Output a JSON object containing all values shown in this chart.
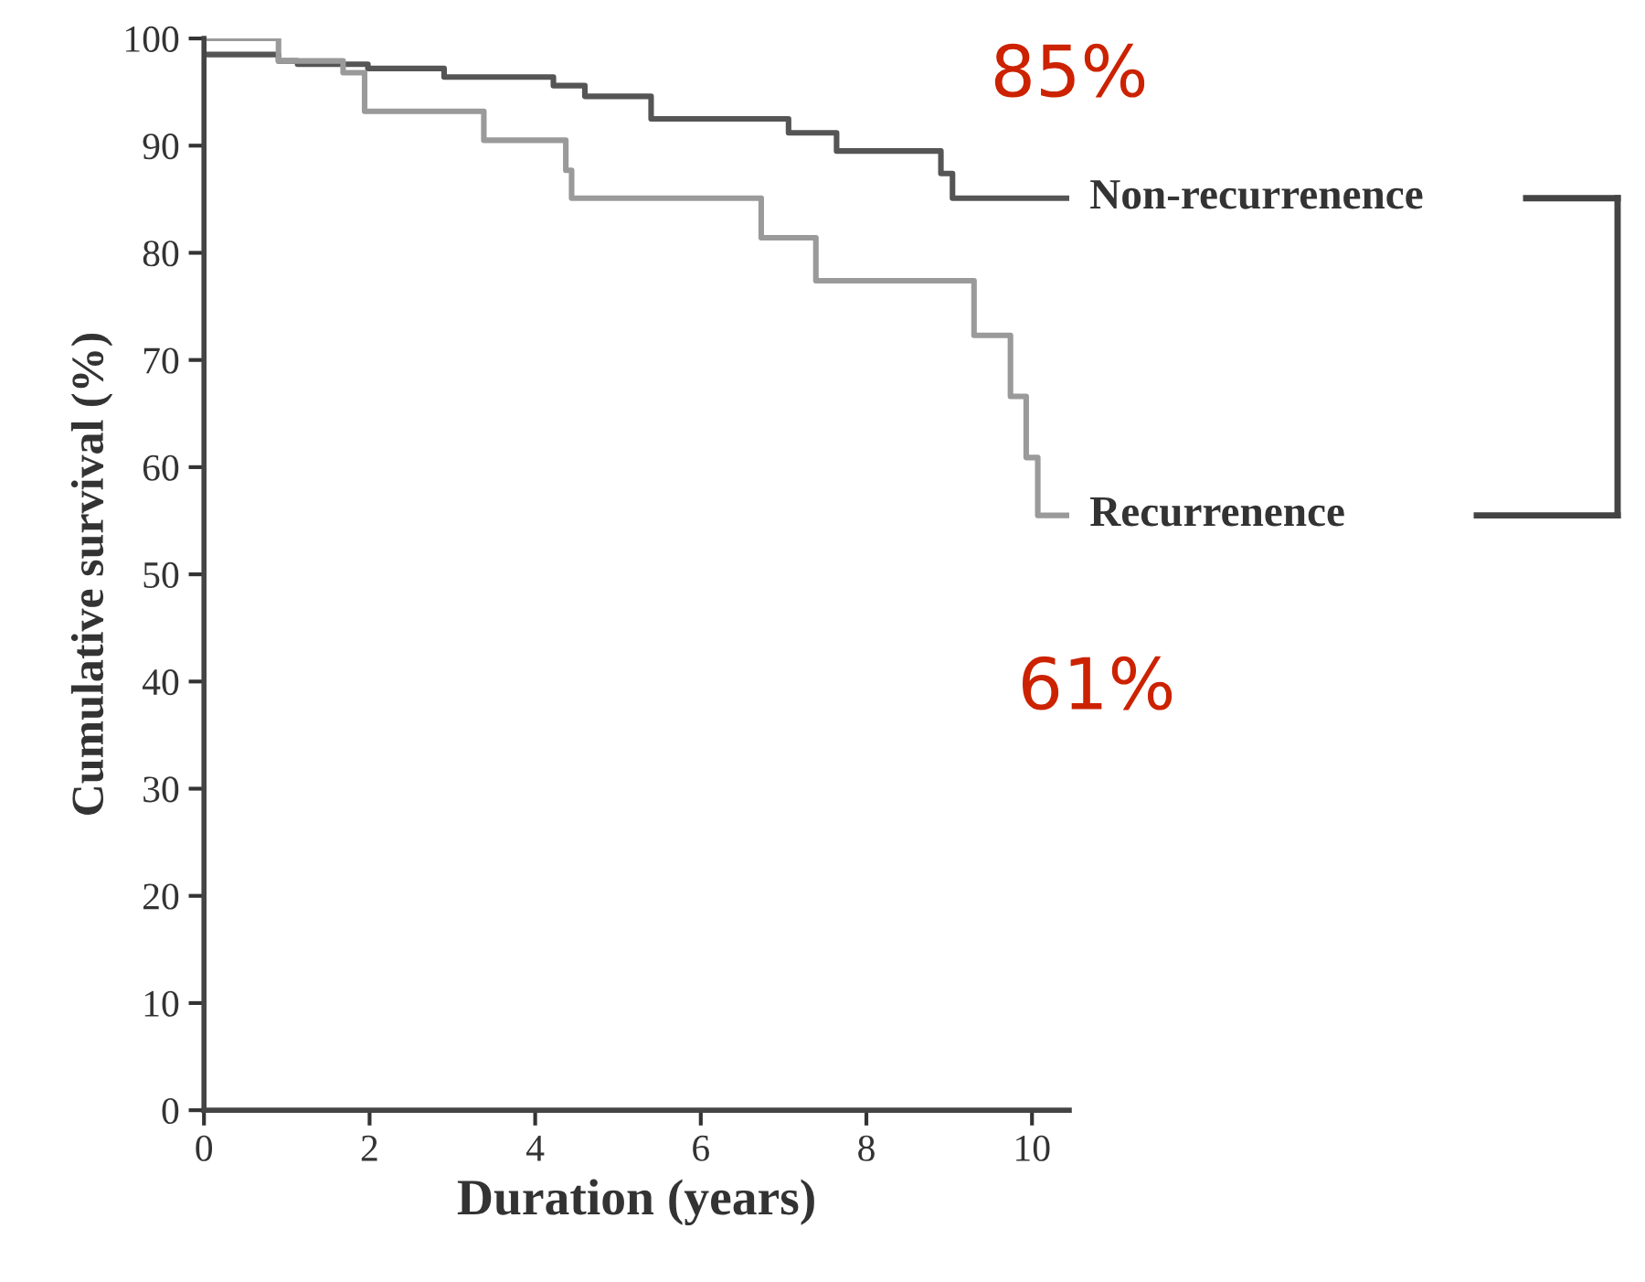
{
  "chart_data": {
    "type": "step",
    "xlabel": "Duration (years)",
    "ylabel": "Cumulative survival (%)",
    "xlim": [
      0,
      10.45
    ],
    "ylim": [
      0,
      100
    ],
    "xticks": [
      0,
      2,
      4,
      6,
      8,
      10
    ],
    "yticks": [
      0,
      10,
      20,
      30,
      40,
      50,
      60,
      70,
      80,
      90,
      100
    ],
    "grid": false,
    "legend": false,
    "marker": "none",
    "line_style": "solid",
    "series": [
      {
        "name": "Non-recurrenence",
        "color": "#555555",
        "x": [
          0,
          0.9,
          1.13,
          1.98,
          2.9,
          4.22,
          4.6,
          5.4,
          7.06,
          7.64,
          8.9,
          9.04,
          10.45
        ],
        "values": [
          98.5,
          97.9,
          97.6,
          97.2,
          96.4,
          95.6,
          94.6,
          92.5,
          91.2,
          89.5,
          87.4,
          85.1,
          85.1
        ]
      },
      {
        "name": "Recurrenence",
        "color": "#9a9a9a",
        "x": [
          0,
          0.9,
          1.68,
          1.94,
          3.38,
          4.37,
          4.44,
          6.73,
          7.39,
          9.3,
          9.74,
          9.93,
          10.07,
          10.45
        ],
        "values": [
          100,
          97.9,
          96.8,
          93.2,
          90.5,
          87.7,
          85.1,
          81.4,
          77.4,
          72.3,
          66.6,
          60.9,
          55.5,
          55.5
        ]
      }
    ],
    "annotations": [
      "85%",
      "61%"
    ]
  }
}
